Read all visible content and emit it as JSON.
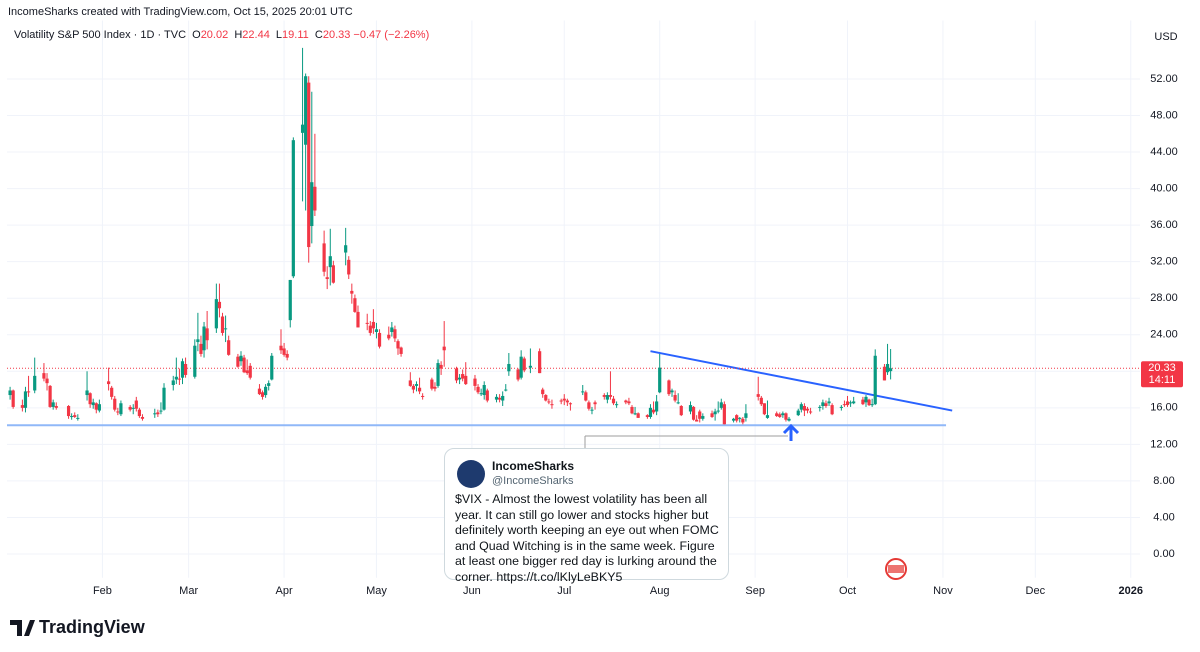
{
  "header": {
    "credit": "IncomeSharks created with TradingView.com, Oct 15, 2025 20:01 UTC"
  },
  "chart_data": {
    "type": "candlestick",
    "symbol": "Volatility S&P 500 Index · 1D · TVC",
    "change": "−0.47 (−2.26%)",
    "currency": "USD",
    "countdown": "14:11",
    "up_color": "#089981",
    "down_color": "#f23645",
    "grid": true,
    "xlim": [
      0,
      368
    ],
    "ylim": [
      -2.6,
      58.4
    ],
    "xticks": [
      {
        "value": 31,
        "label": "Feb"
      },
      {
        "value": 59,
        "label": "Mar"
      },
      {
        "value": 90,
        "label": "Apr"
      },
      {
        "value": 120,
        "label": "May"
      },
      {
        "value": 151,
        "label": "Jun"
      },
      {
        "value": 181,
        "label": "Jul"
      },
      {
        "value": 212,
        "label": "Aug"
      },
      {
        "value": 243,
        "label": "Sep"
      },
      {
        "value": 273,
        "label": "Oct"
      },
      {
        "value": 304,
        "label": "Nov"
      },
      {
        "value": 334,
        "label": "Dec"
      },
      {
        "value": 365,
        "label": "2026"
      }
    ],
    "yticks": [
      {
        "value": 0,
        "label": "0.00"
      },
      {
        "value": 4,
        "label": "4.00"
      },
      {
        "value": 8,
        "label": "8.00"
      },
      {
        "value": 12,
        "label": "12.00"
      },
      {
        "value": 16,
        "label": "16.00"
      },
      {
        "value": 20,
        "label": "20.00"
      },
      {
        "value": 24,
        "label": "24.00"
      },
      {
        "value": 28,
        "label": "28.00"
      },
      {
        "value": 32,
        "label": "32.00"
      },
      {
        "value": 36,
        "label": "36.00"
      },
      {
        "value": 40,
        "label": "40.00"
      },
      {
        "value": 44,
        "label": "44.00"
      },
      {
        "value": 48,
        "label": "48.00"
      },
      {
        "value": 52,
        "label": "52.00"
      }
    ],
    "x": [
      1,
      2,
      5,
      6,
      7,
      9,
      12,
      13,
      14,
      15,
      16,
      20,
      21,
      22,
      23,
      26,
      27,
      28,
      29,
      30,
      33,
      34,
      35,
      36,
      37,
      40,
      41,
      42,
      43,
      44,
      48,
      49,
      50,
      51,
      54,
      55,
      56,
      57,
      58,
      61,
      62,
      63,
      64,
      65,
      68,
      69,
      70,
      71,
      72,
      75,
      76,
      77,
      78,
      79,
      82,
      83,
      84,
      85,
      86,
      89,
      90,
      91,
      92,
      93,
      96,
      97,
      98,
      99,
      100,
      103,
      104,
      105,
      106,
      110,
      111,
      112,
      113,
      114,
      117,
      118,
      119,
      120,
      121,
      124,
      125,
      126,
      127,
      128,
      131,
      132,
      133,
      134,
      135,
      138,
      139,
      140,
      141,
      142,
      146,
      147,
      148,
      149,
      152,
      153,
      154,
      155,
      156,
      159,
      160,
      161,
      162,
      163,
      166,
      167,
      168,
      170,
      173,
      174,
      175,
      176,
      177,
      180,
      181,
      182,
      183,
      187,
      188,
      189,
      190,
      191,
      194,
      195,
      196,
      197,
      198,
      201,
      202,
      203,
      204,
      205,
      208,
      209,
      210,
      211,
      212,
      215,
      216,
      217,
      218,
      219,
      222,
      223,
      224,
      225,
      226,
      229,
      230,
      231,
      232,
      233,
      236,
      237,
      238,
      239,
      240,
      244,
      245,
      246,
      247,
      250,
      251,
      252,
      253,
      254,
      257,
      258,
      259,
      260,
      261,
      264,
      265,
      266,
      267,
      268,
      271,
      272,
      273,
      274,
      275,
      278,
      279,
      280,
      281,
      282,
      285,
      286,
      287
    ],
    "ohlc": [
      [
        17.4,
        18.3,
        16.9,
        17.9
      ],
      [
        17.9,
        18.0,
        15.9,
        16.1
      ],
      [
        16.3,
        16.9,
        15.6,
        16.0
      ],
      [
        16.0,
        18.3,
        15.5,
        17.8
      ],
      [
        17.8,
        19.5,
        17.2,
        17.7
      ],
      [
        17.9,
        21.5,
        17.6,
        19.5
      ],
      [
        19.8,
        20.9,
        18.9,
        19.2
      ],
      [
        19.2,
        19.8,
        17.9,
        18.7
      ],
      [
        18.4,
        18.5,
        16.0,
        16.1
      ],
      [
        16.1,
        16.9,
        15.8,
        16.6
      ],
      [
        16.2,
        16.6,
        15.8,
        16.0
      ],
      [
        16.2,
        16.3,
        14.8,
        15.1
      ],
      [
        15.1,
        15.4,
        14.7,
        15.1
      ],
      [
        15.2,
        15.5,
        14.9,
        15.0
      ],
      [
        14.9,
        15.3,
        14.6,
        14.9
      ],
      [
        17.4,
        20.0,
        16.8,
        17.9
      ],
      [
        17.6,
        17.7,
        16.0,
        16.4
      ],
      [
        16.3,
        17.0,
        15.9,
        16.6
      ],
      [
        16.5,
        16.6,
        15.4,
        15.8
      ],
      [
        15.7,
        16.9,
        15.5,
        16.4
      ],
      [
        18.9,
        20.4,
        17.9,
        18.6
      ],
      [
        18.2,
        18.4,
        16.9,
        17.2
      ],
      [
        17.0,
        17.3,
        15.6,
        15.8
      ],
      [
        15.6,
        16.0,
        15.2,
        15.5
      ],
      [
        15.3,
        16.8,
        15.1,
        16.5
      ],
      [
        16.1,
        16.3,
        15.6,
        15.8
      ],
      [
        15.9,
        16.4,
        15.3,
        16.0
      ],
      [
        16.8,
        17.2,
        15.6,
        15.9
      ],
      [
        15.8,
        16.0,
        14.9,
        15.1
      ],
      [
        15.0,
        15.3,
        14.6,
        14.8
      ],
      [
        15.4,
        15.9,
        14.9,
        15.4
      ],
      [
        15.5,
        15.8,
        15.0,
        15.3
      ],
      [
        15.6,
        16.6,
        15.3,
        15.7
      ],
      [
        15.8,
        18.7,
        15.7,
        18.2
      ],
      [
        18.5,
        19.5,
        17.9,
        19.0
      ],
      [
        19.1,
        21.5,
        18.6,
        19.4
      ],
      [
        19.2,
        20.3,
        18.5,
        19.1
      ],
      [
        19.3,
        21.4,
        18.6,
        21.1
      ],
      [
        20.8,
        21.5,
        19.3,
        19.6
      ],
      [
        19.4,
        23.5,
        19.2,
        22.8
      ],
      [
        23.2,
        26.4,
        22.2,
        23.5
      ],
      [
        23.0,
        23.9,
        21.6,
        21.9
      ],
      [
        22.3,
        25.4,
        21.5,
        24.9
      ],
      [
        24.7,
        26.6,
        22.4,
        23.4
      ],
      [
        24.7,
        29.6,
        24.2,
        27.9
      ],
      [
        27.6,
        29.6,
        25.9,
        26.9
      ],
      [
        26.0,
        26.4,
        23.9,
        24.2
      ],
      [
        24.6,
        26.1,
        23.2,
        24.7
      ],
      [
        23.4,
        23.9,
        21.7,
        21.8
      ],
      [
        21.6,
        21.9,
        20.4,
        20.5
      ],
      [
        21.1,
        22.2,
        20.6,
        21.7
      ],
      [
        21.5,
        21.8,
        19.8,
        19.9
      ],
      [
        20.1,
        21.3,
        19.6,
        19.8
      ],
      [
        20.6,
        20.9,
        19.1,
        19.3
      ],
      [
        18.1,
        18.6,
        17.4,
        17.5
      ],
      [
        17.7,
        17.9,
        16.9,
        17.2
      ],
      [
        17.4,
        18.6,
        17.1,
        18.3
      ],
      [
        18.4,
        19.0,
        17.9,
        18.7
      ],
      [
        19.1,
        22.0,
        19.0,
        21.7
      ],
      [
        22.8,
        24.6,
        21.9,
        22.3
      ],
      [
        22.5,
        23.1,
        21.6,
        21.8
      ],
      [
        21.9,
        22.3,
        21.2,
        21.5
      ],
      [
        25.6,
        30.0,
        24.8,
        30.0
      ],
      [
        30.4,
        45.6,
        30.2,
        45.3
      ],
      [
        46.1,
        55.4,
        38.6,
        47.0
      ],
      [
        44.8,
        52.6,
        37.6,
        52.3
      ],
      [
        51.6,
        52.3,
        31.9,
        33.6
      ],
      [
        35.9,
        50.6,
        34.0,
        40.7
      ],
      [
        40.2,
        46.0,
        37.0,
        37.6
      ],
      [
        34.0,
        35.4,
        30.4,
        30.9
      ],
      [
        30.3,
        31.5,
        29.0,
        30.1
      ],
      [
        31.4,
        35.6,
        29.4,
        32.6
      ],
      [
        31.6,
        32.1,
        29.6,
        29.7
      ],
      [
        33.0,
        35.7,
        31.6,
        33.8
      ],
      [
        32.2,
        32.6,
        30.1,
        30.6
      ],
      [
        28.8,
        29.6,
        27.4,
        28.5
      ],
      [
        28.0,
        28.4,
        26.4,
        26.5
      ],
      [
        26.5,
        27.2,
        24.8,
        24.8
      ],
      [
        25.3,
        26.3,
        24.5,
        25.2
      ],
      [
        25.0,
        25.5,
        23.9,
        24.2
      ],
      [
        25.4,
        26.8,
        24.1,
        24.7
      ],
      [
        24.3,
        25.3,
        23.6,
        24.6
      ],
      [
        24.2,
        24.6,
        22.5,
        22.7
      ],
      [
        24.0,
        24.9,
        23.4,
        23.6
      ],
      [
        24.3,
        25.4,
        23.8,
        24.8
      ],
      [
        24.6,
        25.0,
        23.2,
        23.6
      ],
      [
        23.3,
        23.5,
        21.8,
        22.5
      ],
      [
        22.6,
        22.7,
        21.6,
        21.9
      ],
      [
        19.0,
        19.9,
        18.3,
        18.4
      ],
      [
        18.4,
        18.6,
        17.6,
        18.0
      ],
      [
        18.4,
        18.9,
        17.8,
        18.6
      ],
      [
        18.2,
        19.3,
        17.5,
        17.8
      ],
      [
        17.3,
        17.6,
        16.9,
        17.2
      ],
      [
        19.1,
        19.3,
        17.9,
        18.1
      ],
      [
        18.3,
        18.8,
        17.8,
        18.1
      ],
      [
        18.4,
        21.3,
        18.2,
        20.9
      ],
      [
        20.7,
        21.1,
        19.6,
        20.3
      ],
      [
        22.7,
        25.5,
        20.5,
        22.3
      ],
      [
        20.3,
        20.5,
        18.7,
        19.0
      ],
      [
        19.1,
        19.7,
        18.6,
        19.3
      ],
      [
        19.7,
        20.2,
        18.9,
        19.2
      ],
      [
        19.5,
        21.0,
        18.5,
        18.6
      ],
      [
        19.2,
        19.6,
        17.9,
        18.4
      ],
      [
        18.3,
        18.6,
        17.5,
        17.7
      ],
      [
        17.6,
        18.1,
        17.3,
        17.6
      ],
      [
        17.4,
        18.9,
        16.9,
        18.5
      ],
      [
        17.9,
        18.1,
        16.6,
        16.8
      ],
      [
        16.9,
        17.5,
        16.6,
        17.2
      ],
      [
        17.1,
        17.5,
        16.6,
        16.9
      ],
      [
        16.8,
        17.8,
        16.2,
        17.3
      ],
      [
        18.0,
        18.6,
        17.8,
        18.0
      ],
      [
        20.0,
        22.0,
        19.5,
        20.8
      ],
      [
        20.2,
        20.3,
        18.9,
        19.1
      ],
      [
        19.3,
        22.3,
        19.1,
        21.6
      ],
      [
        21.4,
        21.6,
        19.9,
        20.1
      ],
      [
        20.4,
        22.5,
        19.8,
        20.6
      ],
      [
        22.2,
        22.5,
        19.8,
        19.8
      ],
      [
        18.0,
        18.2,
        17.1,
        17.5
      ],
      [
        17.4,
        17.5,
        16.7,
        16.8
      ],
      [
        16.7,
        17.0,
        16.4,
        16.6
      ],
      [
        16.4,
        16.9,
        15.9,
        16.3
      ],
      [
        16.8,
        17.0,
        16.4,
        16.7
      ],
      [
        17.0,
        17.5,
        16.3,
        16.8
      ],
      [
        16.8,
        17.0,
        16.2,
        16.6
      ],
      [
        16.5,
        16.6,
        15.7,
        16.4
      ],
      [
        17.8,
        18.5,
        17.4,
        17.8
      ],
      [
        17.7,
        17.9,
        16.7,
        16.8
      ],
      [
        16.6,
        16.8,
        15.7,
        15.9
      ],
      [
        15.8,
        16.1,
        15.3,
        15.8
      ],
      [
        16.6,
        16.8,
        15.8,
        16.4
      ],
      [
        17.4,
        17.6,
        16.9,
        17.2
      ],
      [
        16.9,
        17.7,
        16.5,
        17.4
      ],
      [
        17.4,
        20.0,
        16.9,
        17.2
      ],
      [
        17.0,
        17.3,
        16.3,
        16.5
      ],
      [
        16.3,
        16.7,
        16.0,
        16.4
      ],
      [
        16.8,
        16.9,
        16.4,
        16.6
      ],
      [
        16.7,
        17.1,
        16.3,
        16.5
      ],
      [
        16.1,
        16.3,
        15.3,
        15.4
      ],
      [
        15.4,
        16.1,
        15.2,
        15.4
      ],
      [
        15.4,
        15.5,
        14.9,
        14.9
      ],
      [
        15.2,
        15.3,
        14.8,
        15.0
      ],
      [
        15.0,
        16.4,
        14.8,
        16.0
      ],
      [
        15.8,
        16.7,
        15.3,
        15.5
      ],
      [
        15.6,
        17.4,
        15.2,
        16.7
      ],
      [
        17.7,
        21.9,
        17.6,
        20.4
      ],
      [
        19.0,
        19.1,
        17.3,
        17.5
      ],
      [
        17.7,
        18.1,
        17.2,
        17.9
      ],
      [
        17.4,
        17.9,
        16.6,
        16.8
      ],
      [
        16.6,
        17.6,
        16.4,
        16.6
      ],
      [
        16.2,
        16.3,
        15.1,
        15.2
      ],
      [
        15.6,
        16.7,
        15.3,
        16.3
      ],
      [
        16.1,
        16.2,
        14.6,
        14.7
      ],
      [
        14.7,
        15.2,
        14.5,
        14.5
      ],
      [
        15.6,
        15.8,
        14.4,
        14.8
      ],
      [
        14.8,
        15.4,
        14.6,
        15.1
      ],
      [
        15.4,
        15.7,
        14.9,
        15.0
      ],
      [
        15.3,
        15.9,
        14.6,
        15.6
      ],
      [
        15.6,
        16.7,
        15.4,
        15.7
      ],
      [
        16.0,
        17.0,
        15.8,
        16.6
      ],
      [
        16.4,
        16.7,
        14.2,
        14.2
      ],
      [
        14.6,
        14.9,
        14.4,
        14.8
      ],
      [
        15.2,
        15.3,
        14.4,
        14.6
      ],
      [
        14.9,
        15.0,
        14.4,
        14.9
      ],
      [
        14.8,
        15.0,
        14.2,
        14.4
      ],
      [
        14.9,
        16.4,
        14.5,
        15.4
      ],
      [
        17.5,
        19.4,
        16.8,
        17.2
      ],
      [
        17.1,
        17.3,
        16.2,
        16.4
      ],
      [
        16.5,
        16.5,
        15.2,
        15.3
      ],
      [
        14.9,
        16.8,
        14.8,
        15.2
      ],
      [
        15.4,
        15.6,
        15.0,
        15.1
      ],
      [
        15.3,
        15.5,
        14.9,
        15.0
      ],
      [
        15.2,
        15.6,
        14.9,
        15.4
      ],
      [
        15.4,
        15.5,
        14.5,
        14.7
      ],
      [
        14.6,
        15.0,
        14.5,
        14.8
      ],
      [
        15.2,
        15.9,
        15.1,
        15.7
      ],
      [
        15.8,
        16.6,
        15.5,
        16.4
      ],
      [
        16.2,
        16.5,
        15.1,
        15.7
      ],
      [
        15.9,
        16.1,
        15.4,
        15.7
      ],
      [
        15.6,
        16.0,
        15.3,
        15.5
      ],
      [
        16.0,
        16.3,
        15.6,
        16.1
      ],
      [
        16.2,
        16.9,
        15.8,
        16.6
      ],
      [
        16.5,
        16.8,
        16.0,
        16.2
      ],
      [
        16.5,
        17.1,
        16.2,
        16.7
      ],
      [
        16.3,
        16.5,
        15.2,
        15.3
      ],
      [
        16.0,
        16.3,
        15.7,
        16.1
      ],
      [
        16.4,
        16.8,
        16.1,
        16.3
      ],
      [
        16.7,
        17.3,
        16.1,
        16.3
      ],
      [
        16.5,
        16.8,
        16.1,
        16.6
      ],
      [
        16.5,
        17.2,
        16.4,
        16.7
      ],
      [
        16.9,
        17.2,
        16.3,
        16.4
      ],
      [
        16.6,
        17.4,
        16.1,
        17.2
      ],
      [
        16.9,
        17.0,
        16.2,
        16.3
      ],
      [
        16.3,
        17.0,
        16.1,
        16.4
      ],
      [
        16.4,
        22.4,
        16.3,
        21.7
      ],
      [
        20.5,
        20.8,
        19.0,
        19.0
      ],
      [
        19.9,
        23.0,
        19.6,
        20.8
      ],
      [
        20.02,
        22.44,
        19.11,
        20.33
      ]
    ],
    "drawings": [
      {
        "color": "#90b8f8",
        "x": [
          0,
          305
        ],
        "y": [
          14.1,
          14.1
        ]
      },
      {
        "color": "#2962ff",
        "x": [
          209,
          307
        ],
        "y": [
          22.2,
          15.7
        ]
      }
    ]
  },
  "tweet": {
    "name": "IncomeSharks",
    "handle": "@IncomeSharks",
    "text": "$VIX - Almost the lowest volatility has been all year. It can still go lower and stocks higher but definitely worth keeping an eye out when FOMC and Quad Witching is in the same week. Figure at least one bigger red day is lurking around the corner. https://t.co/lKlyLeBKY5"
  },
  "footer": {
    "brand": "TradingView"
  }
}
